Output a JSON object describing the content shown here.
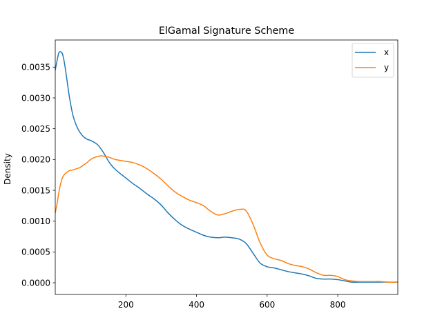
{
  "chart_data": {
    "type": "line",
    "title": "ElGamal Signature Scheme",
    "xlabel": "",
    "ylabel": "Density",
    "xlim": [
      0,
      970
    ],
    "ylim": [
      -0.00019,
      0.00394
    ],
    "x_ticks": [
      200,
      400,
      600,
      800
    ],
    "y_ticks": [
      0.0,
      0.0005,
      0.001,
      0.0015,
      0.002,
      0.0025,
      0.003,
      0.0035
    ],
    "x_tick_labels": [
      "200",
      "400",
      "600",
      "800"
    ],
    "y_tick_labels": [
      "0.0000",
      "0.0005",
      "0.0010",
      "0.0015",
      "0.0020",
      "0.0025",
      "0.0030",
      "0.0035"
    ],
    "grid": false,
    "legend_position": "top-right",
    "series": [
      {
        "name": "x",
        "color": "#1f77b4",
        "x": [
          0,
          5,
          10,
          15,
          20,
          25,
          30,
          40,
          50,
          60,
          70,
          80,
          90,
          100,
          110,
          120,
          130,
          140,
          150,
          160,
          170,
          180,
          200,
          220,
          240,
          260,
          280,
          300,
          320,
          340,
          360,
          380,
          400,
          420,
          440,
          460,
          480,
          500,
          520,
          540,
          560,
          580,
          600,
          620,
          640,
          660,
          680,
          700,
          720,
          740,
          760,
          780,
          800,
          820,
          840,
          860,
          880,
          900,
          920,
          940,
          970
        ],
        "values": [
          0.00345,
          0.0036,
          0.00373,
          0.00375,
          0.00372,
          0.0036,
          0.00342,
          0.00302,
          0.00272,
          0.00255,
          0.00244,
          0.00237,
          0.00233,
          0.00231,
          0.00228,
          0.00224,
          0.00217,
          0.00208,
          0.00198,
          0.0019,
          0.00184,
          0.00179,
          0.0017,
          0.00161,
          0.00153,
          0.00144,
          0.00136,
          0.00126,
          0.00113,
          0.00102,
          0.00093,
          0.00087,
          0.00082,
          0.00077,
          0.00074,
          0.00073,
          0.00074,
          0.00073,
          0.00071,
          0.00064,
          0.00048,
          0.00032,
          0.00026,
          0.00024,
          0.00021,
          0.00018,
          0.00016,
          0.00014,
          0.00011,
          7e-05,
          6e-05,
          6e-05,
          5e-05,
          3e-05,
          1e-05,
          1e-05,
          1e-05,
          1e-05,
          1e-05,
          1e-05,
          1e-05
        ]
      },
      {
        "name": "y",
        "color": "#ff7f0e",
        "x": [
          0,
          5,
          10,
          15,
          20,
          25,
          30,
          40,
          50,
          60,
          70,
          80,
          90,
          100,
          110,
          120,
          130,
          140,
          150,
          160,
          170,
          180,
          200,
          220,
          240,
          260,
          280,
          300,
          320,
          340,
          360,
          380,
          400,
          420,
          440,
          460,
          480,
          500,
          520,
          540,
          560,
          580,
          600,
          620,
          640,
          660,
          680,
          700,
          720,
          740,
          760,
          780,
          800,
          820,
          840,
          860,
          880,
          900,
          920,
          940,
          970
        ],
        "values": [
          0.00113,
          0.00128,
          0.00146,
          0.0016,
          0.0017,
          0.00175,
          0.00178,
          0.00182,
          0.00183,
          0.00185,
          0.00187,
          0.00191,
          0.00195,
          0.002,
          0.00203,
          0.00205,
          0.00206,
          0.00205,
          0.00204,
          0.00202,
          0.002,
          0.00199,
          0.00197,
          0.00195,
          0.00191,
          0.00185,
          0.00177,
          0.00168,
          0.00157,
          0.00147,
          0.0014,
          0.00134,
          0.0013,
          0.00125,
          0.00116,
          0.0011,
          0.00112,
          0.00116,
          0.00119,
          0.00117,
          0.00095,
          0.00065,
          0.00045,
          0.00039,
          0.00036,
          0.00031,
          0.00028,
          0.00026,
          0.00022,
          0.00016,
          0.00012,
          0.00012,
          0.0001,
          5e-05,
          3e-05,
          2e-05,
          2e-05,
          2e-05,
          2e-05,
          1e-05,
          1e-05
        ]
      }
    ]
  }
}
